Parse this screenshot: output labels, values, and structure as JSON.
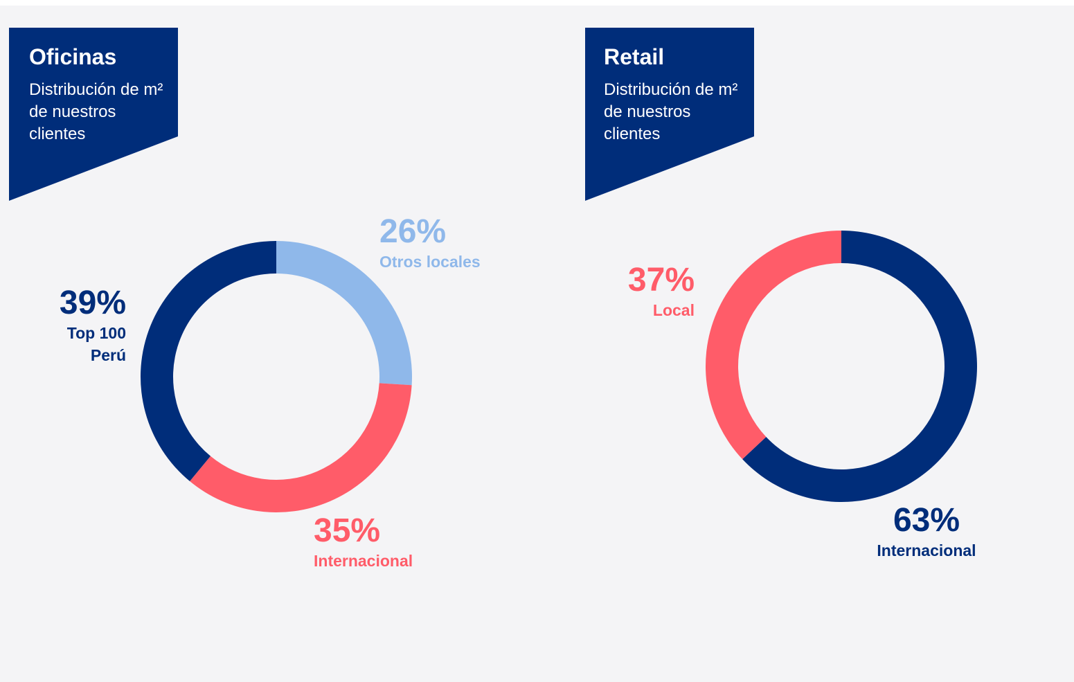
{
  "chart_data": [
    {
      "type": "pie",
      "title": "Oficinas",
      "subtitle": "Distribución de m² de nuestros clientes",
      "categories": [
        "Otros locales",
        "Internacional",
        "Top 100 Perú"
      ],
      "values": [
        26,
        35,
        39
      ],
      "value_labels": [
        "26%",
        "35%",
        "39%"
      ],
      "colors": [
        "#8fb8ea",
        "#ff5c69",
        "#002d7a"
      ]
    },
    {
      "type": "pie",
      "title": "Retail",
      "subtitle": "Distribución de m² de nuestros clientes",
      "categories": [
        "Internacional",
        "Local"
      ],
      "values": [
        63,
        37
      ],
      "value_labels": [
        "63%",
        "37%"
      ],
      "colors": [
        "#002d7a",
        "#ff5c69"
      ]
    }
  ]
}
